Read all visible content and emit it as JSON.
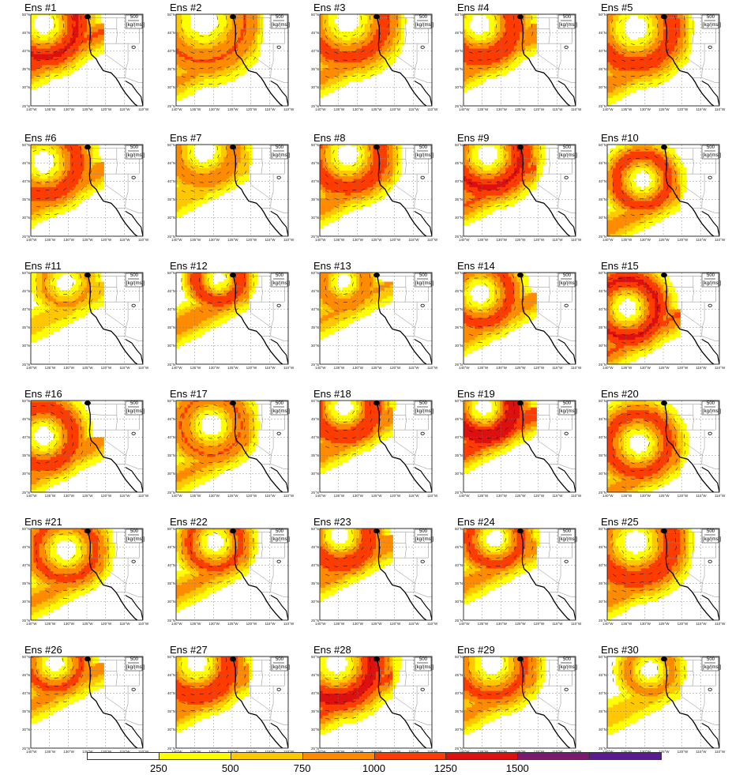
{
  "panels": [
    {
      "title": "Ens #1",
      "c": [
        -137,
        47
      ],
      "r": 9,
      "w": [
        1,
        1,
        1,
        1,
        1,
        1,
        1,
        1,
        1,
        1,
        1,
        1,
        1
      ],
      "inten": 0.75
    },
    {
      "title": "Ens #2",
      "c": [
        -133,
        48
      ],
      "r": 11,
      "w": [
        1,
        1,
        1,
        1,
        1,
        1,
        1,
        1,
        1,
        1,
        1,
        1,
        1
      ],
      "inten": 0.45
    },
    {
      "title": "Ens #3",
      "c": [
        -133,
        48
      ],
      "r": 10,
      "w": [
        1
      ],
      "inten": 0.55
    },
    {
      "title": "Ens #4",
      "c": [
        -136,
        47
      ],
      "r": 9,
      "w": [
        1
      ],
      "inten": 0.7
    },
    {
      "title": "Ens #5",
      "c": [
        -133,
        46
      ],
      "r": 10,
      "w": [
        1
      ],
      "inten": 0.6
    },
    {
      "title": "Ens #6",
      "c": [
        -137,
        45
      ],
      "r": 9,
      "w": [
        1
      ],
      "inten": 0.6
    },
    {
      "title": "Ens #7",
      "c": [
        -133,
        48
      ],
      "r": 8,
      "w": [
        1
      ],
      "inten": 0.35
    },
    {
      "title": "Ens #8",
      "c": [
        -133,
        47
      ],
      "r": 9,
      "w": [
        1
      ],
      "inten": 0.6
    },
    {
      "title": "Ens #9",
      "c": [
        -134,
        47
      ],
      "r": 9,
      "w": [
        1
      ],
      "inten": 0.75
    },
    {
      "title": "Ens #10",
      "c": [
        -131,
        40
      ],
      "r": 7,
      "w": [
        1
      ],
      "inten": 0.55
    },
    {
      "title": "Ens #11",
      "c": [
        -131,
        47
      ],
      "r": 6,
      "w": [
        1
      ],
      "inten": 0.2
    },
    {
      "title": "Ens #12",
      "c": [
        -129,
        48
      ],
      "r": 6,
      "w": [
        1
      ],
      "inten": 0.65
    },
    {
      "title": "Ens #13",
      "c": [
        -134,
        47
      ],
      "r": 6,
      "w": [
        1
      ],
      "inten": 0.4
    },
    {
      "title": "Ens #14",
      "c": [
        -136,
        44
      ],
      "r": 8,
      "w": [
        1
      ],
      "inten": 0.55
    },
    {
      "title": "Ens #15",
      "c": [
        -135,
        40
      ],
      "r": 8,
      "w": [
        1
      ],
      "inten": 0.75
    },
    {
      "title": "Ens #16",
      "c": [
        -137,
        40
      ],
      "r": 8,
      "w": [
        1
      ],
      "inten": 0.6
    },
    {
      "title": "Ens #17",
      "c": [
        -131,
        43
      ],
      "r": 8,
      "w": [
        1
      ],
      "inten": 0.45
    },
    {
      "title": "Ens #18",
      "c": [
        -134,
        48
      ],
      "r": 8,
      "w": [
        1
      ],
      "inten": 0.7
    },
    {
      "title": "Ens #19",
      "c": [
        -135,
        48
      ],
      "r": 8,
      "w": [
        1
      ],
      "inten": 0.95
    },
    {
      "title": "Ens #20",
      "c": [
        -132,
        38
      ],
      "r": 8,
      "w": [
        1
      ],
      "inten": 0.55
    },
    {
      "title": "Ens #21",
      "c": [
        -131,
        44
      ],
      "r": 8,
      "w": [
        1
      ],
      "inten": 0.5
    },
    {
      "title": "Ens #22",
      "c": [
        -130,
        46
      ],
      "r": 7,
      "w": [
        1
      ],
      "inten": 0.5
    },
    {
      "title": "Ens #23",
      "c": [
        -135,
        48
      ],
      "r": 8,
      "w": [
        1
      ],
      "inten": 0.7
    },
    {
      "title": "Ens #24",
      "c": [
        -132,
        47
      ],
      "r": 7,
      "w": [
        1
      ],
      "inten": 0.55
    },
    {
      "title": "Ens #25",
      "c": [
        -133,
        46
      ],
      "r": 10,
      "w": [
        1
      ],
      "inten": 0.65
    },
    {
      "title": "Ens #26",
      "c": [
        -134,
        48
      ],
      "r": 7,
      "w": [
        1
      ],
      "inten": 0.5
    },
    {
      "title": "Ens #27",
      "c": [
        -135,
        48
      ],
      "r": 9,
      "w": [
        1
      ],
      "inten": 0.7
    },
    {
      "title": "Ens #28",
      "c": [
        -136,
        48
      ],
      "r": 10,
      "w": [
        1
      ],
      "inten": 0.8
    },
    {
      "title": "Ens #29",
      "c": [
        -133,
        48
      ],
      "r": 9,
      "w": [
        1
      ],
      "inten": 0.5
    },
    {
      "title": "Ens #30",
      "c": [
        -129,
        46
      ],
      "r": 6,
      "w": [
        1
      ],
      "inten": 0.25
    }
  ],
  "ref_vector": {
    "value": "500",
    "unit": "[kg/(ms)]"
  },
  "lat_ticks": [
    "50°N",
    "45°N",
    "40°N",
    "35°N",
    "30°N",
    "25°N"
  ],
  "lon_ticks": [
    "140°W",
    "135°W",
    "130°W",
    "125°W",
    "120°W",
    "115°W",
    "110°W"
  ],
  "colorbar": {
    "colors": [
      "#ffffff",
      "#ffff00",
      "#ffc800",
      "#ff8c00",
      "#ff3c00",
      "#dd1010",
      "#7a1a6e",
      "#5a1a96"
    ],
    "labels": [
      "250",
      "500",
      "750",
      "1000",
      "1250",
      "1500"
    ]
  }
}
